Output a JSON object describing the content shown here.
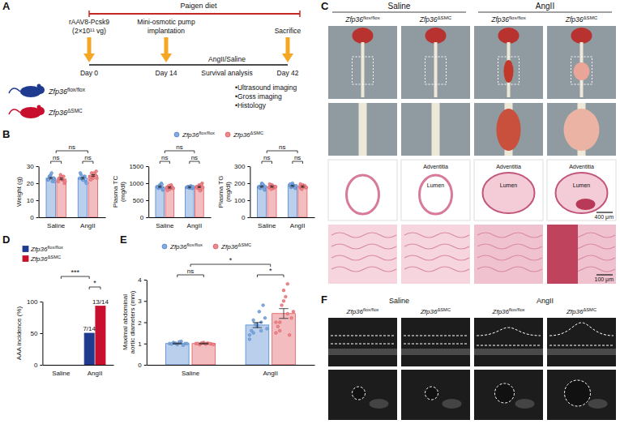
{
  "panel_labels": [
    "A",
    "B",
    "C",
    "D",
    "E",
    "F"
  ],
  "timeline": {
    "diet": "Paigen diet",
    "events": [
      {
        "label": [
          "rAAV8-Pcsk9",
          "(2×10¹¹ vg)"
        ],
        "day": "Day 0"
      },
      {
        "label": [
          "Mini-osmotic pump",
          "implantation"
        ],
        "day": "Day 14"
      },
      {
        "label": [
          "Sacrifice"
        ],
        "day": "Day 42"
      }
    ],
    "treatment": "AngII/Saline",
    "period": "Survival analysis",
    "analyses": [
      "•Ultrasound imaging",
      "•Gross imaging",
      "•Histology"
    ],
    "groups": [
      {
        "label": "Zfp36flox/flox",
        "color": "#1f3b8f"
      },
      {
        "label": "Zfp36ΔSMC",
        "color": "#c8102e"
      }
    ]
  },
  "chart_data": [
    {
      "type": "bar",
      "ylabel": "Weight (g)",
      "categories": [
        "Saline",
        "AngII"
      ],
      "ylim": [
        0,
        30
      ],
      "yticks": [
        0,
        10,
        20,
        30
      ],
      "marker": "circle",
      "legend": "top",
      "series": [
        {
          "name": "Zfp36flox/flox",
          "color": "#4f86cf",
          "values": [
            23,
            23
          ],
          "error": [
            0.5,
            0.5
          ],
          "points": [
            [
              22,
              24,
              25,
              21,
              23,
              22,
              24,
              26,
              23,
              21
            ],
            [
              23,
              25,
              22,
              24,
              21,
              26,
              23,
              22,
              24,
              20
            ]
          ]
        },
        {
          "name": "Zfp36ΔSMC",
          "color": "#e0585e",
          "values": [
            22.5,
            24.5
          ],
          "error": [
            0.5,
            0.5
          ],
          "points": [
            [
              21,
              23,
              24,
              22,
              20,
              23,
              25,
              22,
              24,
              21
            ],
            [
              24,
              26,
              23,
              25,
              27,
              22,
              24,
              26,
              25,
              23
            ]
          ]
        }
      ],
      "annotations": [
        {
          "text": "ns",
          "from": [
            0,
            0
          ],
          "to": [
            0,
            1
          ]
        },
        {
          "text": "ns",
          "from": [
            1,
            0
          ],
          "to": [
            1,
            1
          ]
        },
        {
          "text": "ns",
          "from": [
            0
          ],
          "to": [
            1
          ]
        }
      ]
    },
    {
      "type": "bar",
      "ylabel": "Plasma TC (mg/dl)",
      "categories": [
        "Saline",
        "AngII"
      ],
      "ylim": [
        0,
        1500
      ],
      "yticks": [
        0,
        500,
        1000,
        1500
      ],
      "marker": "circle",
      "series": [
        {
          "color": "#4f86cf",
          "values": [
            896,
            884
          ],
          "error": [
            20,
            20
          ],
          "points": [
            [
              900,
              850,
              950,
              1000,
              800,
              880,
              920,
              870,
              960,
              830
            ],
            [
              880,
              900,
              860,
              920,
              850,
              890,
              870,
              910,
              860,
              900
            ]
          ]
        },
        {
          "color": "#e0585e",
          "values": [
            875,
            891
          ],
          "error": [
            20,
            20
          ],
          "points": [
            [
              880,
              900,
              820,
              950,
              860,
              790,
              930,
              870,
              900,
              850
            ],
            [
              900,
              850,
              950,
              800,
              1000,
              870,
              920,
              780,
              960,
              880
            ]
          ]
        }
      ],
      "annotations": [
        {
          "text": "ns",
          "from": [
            0,
            0
          ],
          "to": [
            0,
            1
          ]
        },
        {
          "text": "ns",
          "from": [
            1,
            0
          ],
          "to": [
            1,
            1
          ]
        },
        {
          "text": "ns",
          "from": [
            0
          ],
          "to": [
            1
          ]
        }
      ]
    },
    {
      "type": "bar",
      "ylabel": "Plasma TG (mg/dl)",
      "categories": [
        "Saline",
        "AngII"
      ],
      "ylim": [
        0,
        300
      ],
      "yticks": [
        0,
        100,
        200,
        300
      ],
      "marker": "circle",
      "series": [
        {
          "color": "#4f86cf",
          "values": [
            180,
            184.5
          ],
          "error": [
            4,
            4
          ],
          "points": [
            [
              180,
              170,
              200,
              190,
              160,
              175,
              185,
              195,
              165,
              180
            ],
            [
              190,
              175,
              200,
              185,
              170,
              195,
              180,
              190,
              175,
              185
            ]
          ]
        },
        {
          "color": "#e0585e",
          "values": [
            180,
            180
          ],
          "error": [
            4,
            4
          ],
          "points": [
            [
              175,
              185,
              190,
              170,
              180,
              195,
              165,
              185,
              175,
              180
            ],
            [
              180,
              170,
              190,
              185,
              175,
              195,
              165,
              180,
              185,
              175
            ]
          ]
        }
      ],
      "annotations": [
        {
          "text": "ns",
          "from": [
            0,
            0
          ],
          "to": [
            0,
            1
          ]
        },
        {
          "text": "ns",
          "from": [
            1,
            0
          ],
          "to": [
            1,
            1
          ]
        },
        {
          "text": "ns",
          "from": [
            0
          ],
          "to": [
            1
          ]
        }
      ]
    },
    {
      "type": "bar",
      "ylabel": "AAA incidence (%)",
      "categories": [
        "Saline",
        "AngII"
      ],
      "ylim": [
        0,
        100
      ],
      "yticks": [
        0,
        50,
        100
      ],
      "data_labels": true,
      "legend": "top",
      "series": [
        {
          "name": "Zfp36flox/flox",
          "color": "#1f3b8f",
          "values": [
            0,
            50
          ],
          "value_labels": [
            null,
            "7/14"
          ]
        },
        {
          "name": "Zfp36ΔSMC",
          "color": "#c8102e",
          "values": [
            0,
            92.86
          ],
          "value_labels": [
            null,
            "13/14"
          ]
        }
      ],
      "annotations": [
        {
          "text": "***",
          "from": [
            0
          ],
          "to": [
            1,
            0
          ]
        },
        {
          "text": "*",
          "from": [
            1,
            0
          ],
          "to": [
            1,
            1
          ]
        }
      ]
    },
    {
      "type": "bar",
      "ylabel": "Maximal abdominal aortic diameters (mm)",
      "categories": [
        "Saline",
        "AngII"
      ],
      "ylim": [
        0,
        4
      ],
      "yticks": [
        0,
        1,
        2,
        3,
        4
      ],
      "marker": "circle",
      "legend": "top",
      "series": [
        {
          "name": "Zfp36flox/flox",
          "color": "#4f86cf",
          "values": [
            1.0,
            1.87
          ],
          "error": [
            0.02,
            0.12
          ],
          "points": [
            [
              1.0,
              1.05,
              0.95,
              1.1,
              1.0,
              0.98,
              1.02,
              1.08,
              0.92,
              1.0
            ],
            [
              1.2,
              1.5,
              1.8,
              2.0,
              2.2,
              1.6,
              1.9,
              2.5,
              2.8,
              1.7,
              1.4,
              2.1,
              1.9,
              1.6
            ]
          ]
        },
        {
          "name": "Zfp36ΔSMC",
          "color": "#e0585e",
          "values": [
            1.0,
            2.41
          ],
          "error": [
            0.02,
            0.23
          ],
          "points": [
            [
              1.0,
              0.95,
              1.05,
              1.02,
              0.98,
              1.0,
              1.03,
              0.97,
              1.0,
              0.96
            ],
            [
              1.5,
              2.0,
              3.5,
              3.8,
              2.2,
              1.8,
              2.8,
              3.2,
              1.4,
              2.5,
              2.0,
              1.6,
              3.0,
              2.4
            ]
          ]
        }
      ],
      "annotations": [
        {
          "text": "ns",
          "from": [
            0,
            0
          ],
          "to": [
            0,
            1
          ]
        },
        {
          "text": "*",
          "from": [
            0
          ],
          "to": [
            1
          ]
        },
        {
          "text": "*",
          "from": [
            1,
            0
          ],
          "to": [
            1,
            1
          ]
        }
      ]
    }
  ],
  "gross_histology": {
    "conditions": [
      "Saline",
      "AngII"
    ],
    "columns": [
      {
        "genotype": "Zfp36flox/flox"
      },
      {
        "genotype": "Zfp36ΔSMC",
        "labels": [
          "Adventitia",
          "Lumen"
        ]
      },
      {
        "genotype": "Zfp36flox/flox",
        "labels": [
          "Adventitia",
          "Lumen"
        ]
      },
      {
        "genotype": "Zfp36ΔSMC",
        "labels": [
          "Adventitia",
          "Lumen"
        ]
      }
    ],
    "scale_bars": [
      "400 μm",
      "100 μm"
    ]
  },
  "ultrasound": {
    "conditions": [
      "Saline",
      "AngII"
    ],
    "genotypes": [
      "Zfp36flox/flox",
      "Zfp36ΔSMC",
      "Zfp36flox/flox",
      "Zfp36ΔSMC"
    ]
  }
}
